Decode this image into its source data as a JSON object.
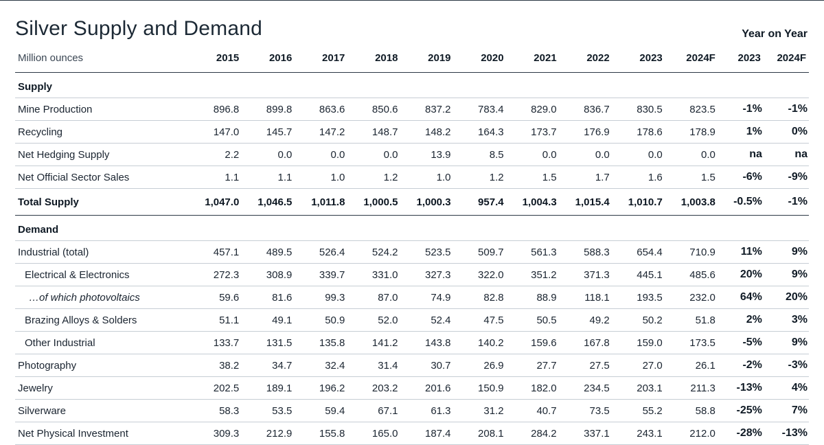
{
  "title": "Silver Supply and Demand",
  "units": "Million ounces",
  "yoy_header": "Year on Year",
  "columns": [
    "2015",
    "2016",
    "2017",
    "2018",
    "2019",
    "2020",
    "2021",
    "2022",
    "2023",
    "2024F"
  ],
  "yoy_columns": [
    "2023",
    "2024F"
  ],
  "sections": [
    {
      "name": "Supply",
      "rows": [
        {
          "label": "Mine Production",
          "values": [
            "896.8",
            "899.8",
            "863.6",
            "850.6",
            "837.2",
            "783.4",
            "829.0",
            "836.7",
            "830.5",
            "823.5"
          ],
          "yoy": [
            "-1%",
            "-1%"
          ]
        },
        {
          "label": "Recycling",
          "values": [
            "147.0",
            "145.7",
            "147.2",
            "148.7",
            "148.2",
            "164.3",
            "173.7",
            "176.9",
            "178.6",
            "178.9"
          ],
          "yoy": [
            "1%",
            "0%"
          ]
        },
        {
          "label": "Net Hedging Supply",
          "values": [
            "2.2",
            "0.0",
            "0.0",
            "0.0",
            "13.9",
            "8.5",
            "0.0",
            "0.0",
            "0.0",
            "0.0"
          ],
          "yoy": [
            "na",
            "na"
          ]
        },
        {
          "label": "Net Official Sector Sales",
          "values": [
            "1.1",
            "1.1",
            "1.0",
            "1.2",
            "1.0",
            "1.2",
            "1.5",
            "1.7",
            "1.6",
            "1.5"
          ],
          "yoy": [
            "-6%",
            "-9%"
          ]
        }
      ],
      "total": {
        "label": "Total Supply",
        "values": [
          "1,047.0",
          "1,046.5",
          "1,011.8",
          "1,000.5",
          "1,000.3",
          "957.4",
          "1,004.3",
          "1,015.4",
          "1,010.7",
          "1,003.8"
        ],
        "yoy": [
          "-0.5%",
          "-1%"
        ]
      }
    },
    {
      "name": "Demand",
      "rows": [
        {
          "label": "Industrial (total)",
          "values": [
            "457.1",
            "489.5",
            "526.4",
            "524.2",
            "523.5",
            "509.7",
            "561.3",
            "588.3",
            "654.4",
            "710.9"
          ],
          "yoy": [
            "11%",
            "9%"
          ]
        },
        {
          "label": "Electrical & Electronics",
          "indent": 1,
          "values": [
            "272.3",
            "308.9",
            "339.7",
            "331.0",
            "327.3",
            "322.0",
            "351.2",
            "371.3",
            "445.1",
            "485.6"
          ],
          "yoy": [
            "20%",
            "9%"
          ]
        },
        {
          "label": "…of which photovoltaics",
          "indent": 2,
          "values": [
            "59.6",
            "81.6",
            "99.3",
            "87.0",
            "74.9",
            "82.8",
            "88.9",
            "118.1",
            "193.5",
            "232.0"
          ],
          "yoy": [
            "64%",
            "20%"
          ]
        },
        {
          "label": "Brazing Alloys & Solders",
          "indent": 1,
          "values": [
            "51.1",
            "49.1",
            "50.9",
            "52.0",
            "52.4",
            "47.5",
            "50.5",
            "49.2",
            "50.2",
            "51.8"
          ],
          "yoy": [
            "2%",
            "3%"
          ]
        },
        {
          "label": "Other Industrial",
          "indent": 1,
          "values": [
            "133.7",
            "131.5",
            "135.8",
            "141.2",
            "143.8",
            "140.2",
            "159.6",
            "167.8",
            "159.0",
            "173.5"
          ],
          "yoy": [
            "-5%",
            "9%"
          ]
        },
        {
          "label": "Photography",
          "values": [
            "38.2",
            "34.7",
            "32.4",
            "31.4",
            "30.7",
            "26.9",
            "27.7",
            "27.5",
            "27.0",
            "26.1"
          ],
          "yoy": [
            "-2%",
            "-3%"
          ]
        },
        {
          "label": "Jewelry",
          "values": [
            "202.5",
            "189.1",
            "196.2",
            "203.2",
            "201.6",
            "150.9",
            "182.0",
            "234.5",
            "203.1",
            "211.3"
          ],
          "yoy": [
            "-13%",
            "4%"
          ]
        },
        {
          "label": "Silverware",
          "values": [
            "58.3",
            "53.5",
            "59.4",
            "67.1",
            "61.3",
            "31.2",
            "40.7",
            "73.5",
            "55.2",
            "58.8"
          ],
          "yoy": [
            "-25%",
            "7%"
          ]
        },
        {
          "label": "Net Physical Investment",
          "values": [
            "309.3",
            "212.9",
            "155.8",
            "165.0",
            "187.4",
            "208.1",
            "284.2",
            "337.1",
            "243.1",
            "212.0"
          ],
          "yoy": [
            "-28%",
            "-13%"
          ]
        }
      ]
    }
  ],
  "styling": {
    "background_color": "#ffffff",
    "text_color": "#1a2430",
    "header_text_color": "#0f1a25",
    "muted_text_color": "#3a4653",
    "row_border_color": "#c6cdd4",
    "strong_border_color": "#2b3744",
    "title_fontsize": 30,
    "title_fontweight": 300,
    "body_fontsize": 15,
    "header_fontweight": 700,
    "font_family": "Helvetica Neue"
  }
}
